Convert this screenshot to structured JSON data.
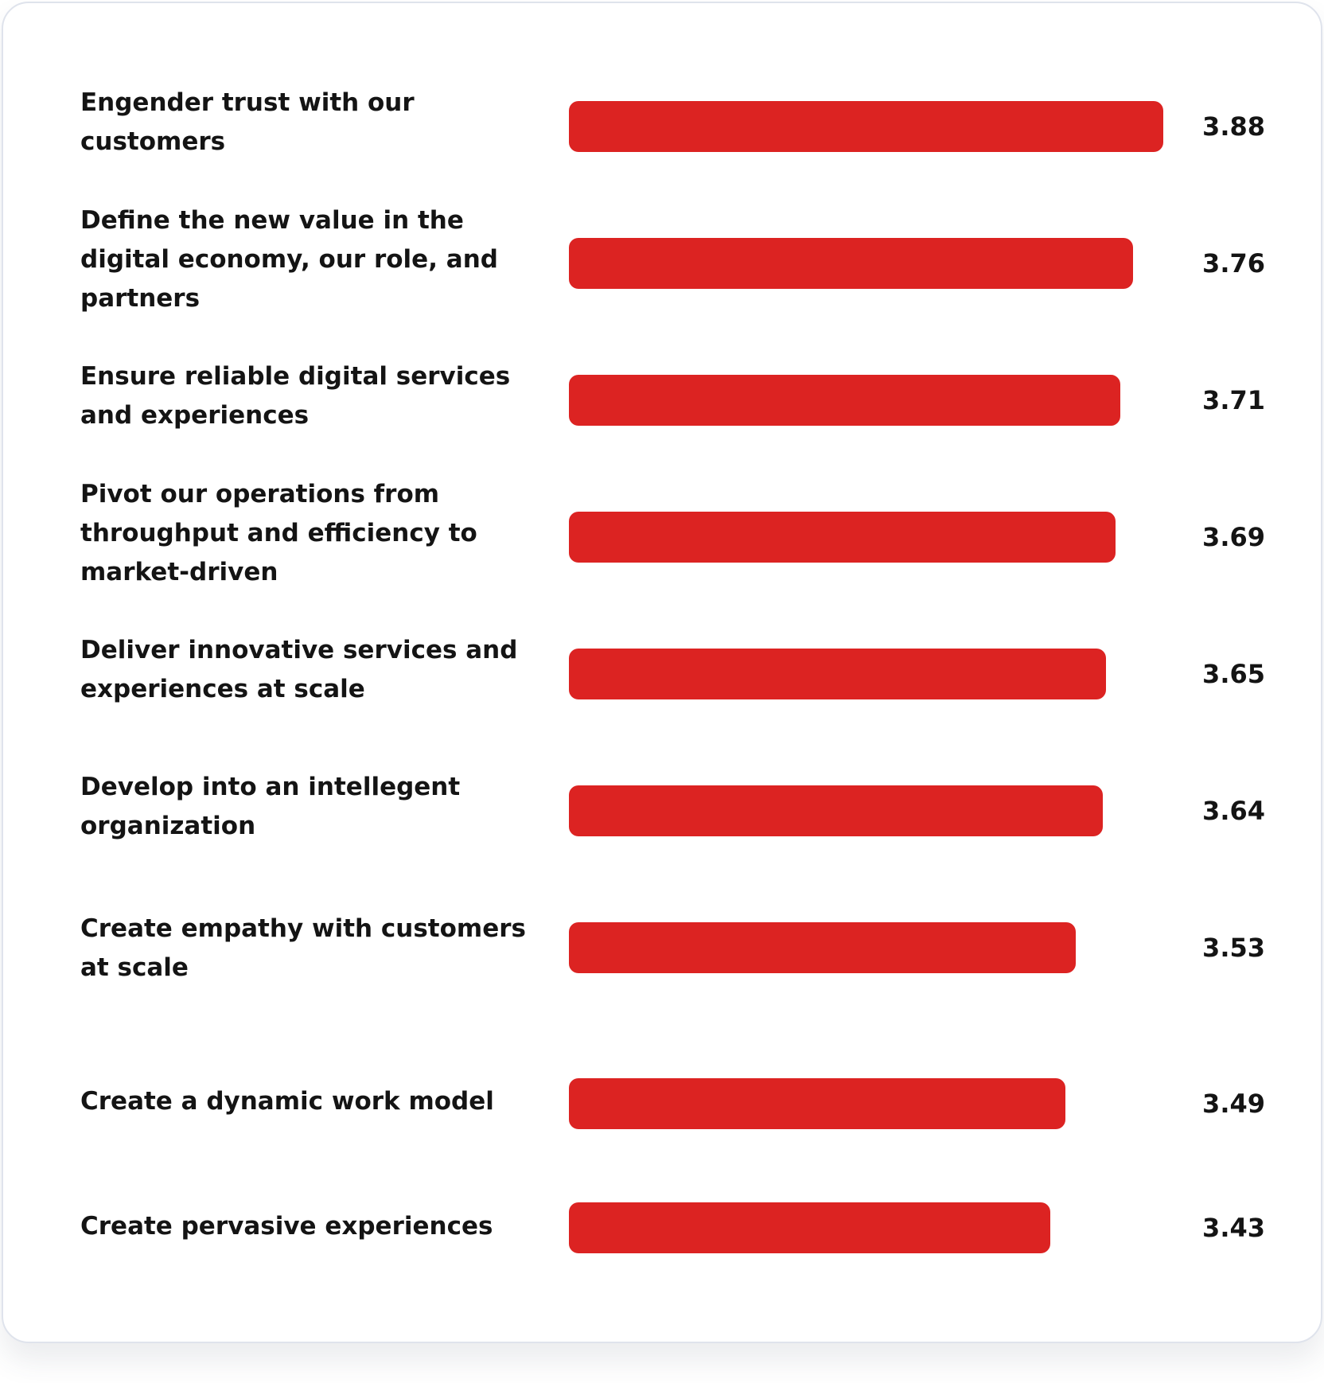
{
  "chart_data": {
    "type": "bar",
    "orientation": "horizontal",
    "categories": [
      "Engender trust with our customers",
      "Define the new value in the digital economy, our role, and partners",
      "Ensure reliable digital services and experiences",
      "Pivot our operations from throughput and efficiency to market-driven",
      "Deliver innovative services and experiences at scale",
      "Develop into an intellegent organization",
      "Create empathy with customers at scale",
      "Create a dynamic work model",
      "Create pervasive experiences"
    ],
    "values": [
      3.88,
      3.76,
      3.71,
      3.69,
      3.65,
      3.64,
      3.53,
      3.49,
      3.43
    ],
    "value_labels": [
      "3.88",
      "3.76",
      "3.71",
      "3.69",
      "3.65",
      "3.64",
      "3.53",
      "3.49",
      "3.43"
    ],
    "title": "",
    "xlabel": "",
    "ylabel": "",
    "xlim": [
      1.51,
      3.88
    ],
    "grid": false,
    "legend": "none",
    "bar_color": "#dc2322"
  }
}
